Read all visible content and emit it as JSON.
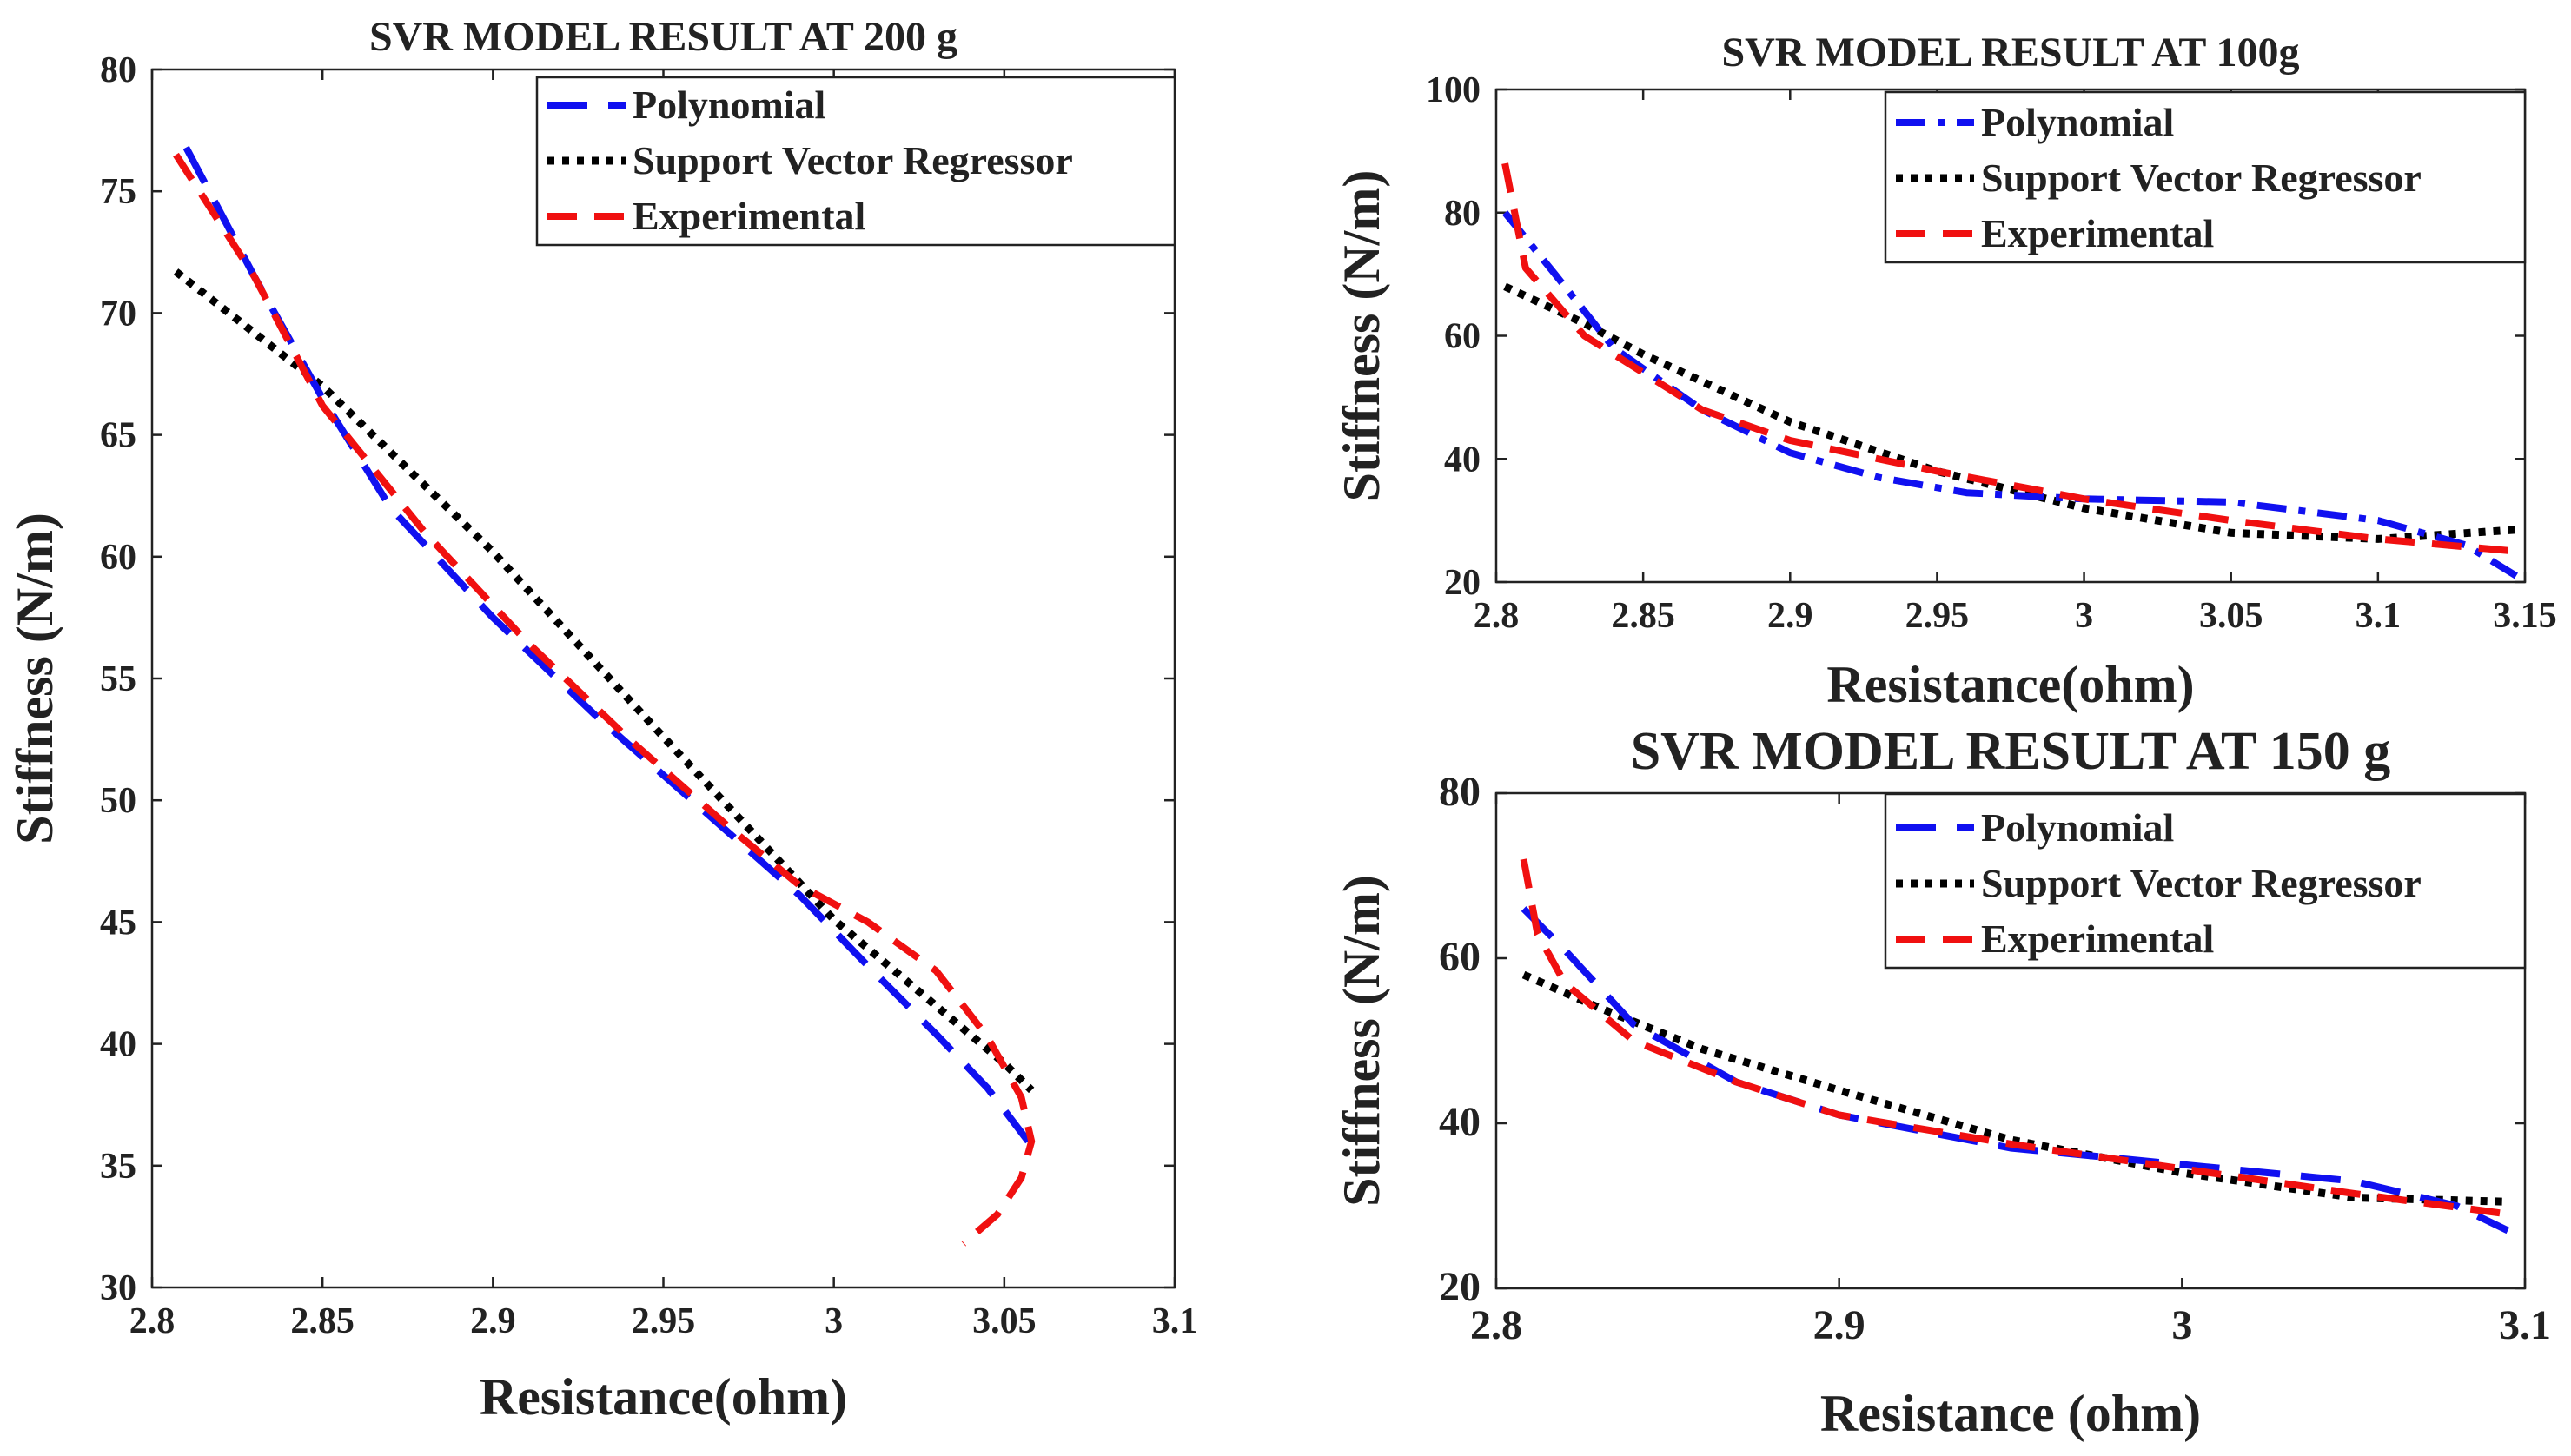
{
  "chart_data": [
    {
      "id": "c200",
      "type": "line",
      "title": "SVR MODEL RESULT AT 200 g",
      "xlabel": "Resistance(ohm)",
      "ylabel": "Stiffness (N/m)",
      "xlim": [
        2.8,
        3.1
      ],
      "ylim": [
        30,
        80
      ],
      "xticks": [
        "2.8",
        "2.85",
        "2.9",
        "2.95",
        "3",
        "3.05",
        "3.1"
      ],
      "yticks": [
        "30",
        "35",
        "40",
        "45",
        "50",
        "55",
        "60",
        "65",
        "70",
        "75",
        "80"
      ],
      "legend": {
        "position": "top-right",
        "entries": [
          "Polynomial",
          "Support Vector Regressor",
          "Experimental"
        ]
      },
      "series": [
        {
          "name": "Polynomial",
          "color": "#1010f0",
          "dash": "long-dash",
          "x": [
            2.81,
            2.83,
            2.85,
            2.87,
            2.9,
            2.93,
            2.96,
            2.99,
            3.01,
            3.03,
            3.045,
            3.057
          ],
          "y": [
            76.8,
            71.5,
            66.5,
            62,
            57.5,
            53.5,
            49.8,
            46.1,
            43.2,
            40.4,
            38.2,
            36
          ]
        },
        {
          "name": "Support Vector Regressor",
          "color": "#000000",
          "dash": "dot",
          "x": [
            2.807,
            2.85,
            2.9,
            2.95,
            3.0,
            3.05,
            3.058
          ],
          "y": [
            71.7,
            67,
            60.2,
            52.6,
            45.1,
            39.2,
            38.1
          ]
        },
        {
          "name": "Experimental",
          "color": "#f01010",
          "dash": "dash",
          "x": [
            2.807,
            2.83,
            2.85,
            2.88,
            2.91,
            2.94,
            2.97,
            2.99,
            3.01,
            3.03,
            3.045,
            3.055,
            3.058,
            3.055,
            3.048,
            3.038
          ],
          "y": [
            76.5,
            71.5,
            66.2,
            61,
            56.5,
            52.5,
            48.8,
            46.5,
            45,
            43,
            40.3,
            37.8,
            36,
            34.5,
            33,
            31.8
          ]
        }
      ]
    },
    {
      "id": "c100",
      "type": "line",
      "title": "SVR MODEL RESULT AT 100g",
      "xlabel": "Resistance(ohm)",
      "ylabel": "Stiffness (N/m)",
      "xlim": [
        2.8,
        3.15
      ],
      "ylim": [
        20,
        100
      ],
      "xticks": [
        "2.8",
        "2.85",
        "2.9",
        "2.95",
        "3",
        "3.05",
        "3.1",
        "3.15"
      ],
      "yticks": [
        "20",
        "40",
        "60",
        "80",
        "100"
      ],
      "legend": {
        "position": "top-right",
        "entries": [
          "Polynomial",
          "Support Vector Regressor",
          "Experimental"
        ]
      },
      "series": [
        {
          "name": "Polynomial",
          "color": "#1010f0",
          "dash": "dash-dot",
          "x": [
            2.803,
            2.82,
            2.84,
            2.87,
            2.9,
            2.93,
            2.96,
            3.0,
            3.05,
            3.1,
            3.13,
            3.147
          ],
          "y": [
            80,
            70,
            58,
            48,
            41,
            37,
            34.5,
            33.5,
            33,
            30,
            26,
            21
          ]
        },
        {
          "name": "Support Vector Regressor",
          "color": "#000000",
          "dash": "dot",
          "x": [
            2.803,
            2.83,
            2.85,
            2.9,
            2.95,
            3.0,
            3.05,
            3.1,
            3.147
          ],
          "y": [
            68,
            62,
            57,
            46,
            38,
            32,
            28,
            27,
            28.5
          ]
        },
        {
          "name": "Experimental",
          "color": "#f01010",
          "dash": "dash",
          "x": [
            2.803,
            2.81,
            2.83,
            2.87,
            2.9,
            2.95,
            3.0,
            3.05,
            3.1,
            3.147
          ],
          "y": [
            88,
            71,
            60,
            48,
            43,
            38,
            33.5,
            30,
            27,
            25
          ]
        }
      ]
    },
    {
      "id": "c150",
      "type": "line",
      "title": "SVR MODEL RESULT AT 150 g",
      "xlabel": "Resistance (ohm)",
      "ylabel": "Stiffness (N/m)",
      "xlim": [
        2.8,
        3.1
      ],
      "ylim": [
        20,
        80
      ],
      "xticks": [
        "2.8",
        "2.9",
        "3",
        "3.1"
      ],
      "yticks": [
        "20",
        "40",
        "60",
        "80"
      ],
      "legend": {
        "position": "top-right",
        "entries": [
          "Polynomial",
          "Support Vector Regressor",
          "Experimental"
        ]
      },
      "series": [
        {
          "name": "Polynomial",
          "color": "#1010f0",
          "dash": "long-dash",
          "x": [
            2.808,
            2.82,
            2.84,
            2.87,
            2.9,
            2.95,
            3.0,
            3.05,
            3.08,
            3.095
          ],
          "y": [
            66,
            61,
            52,
            45,
            41,
            37,
            35,
            33,
            30,
            27
          ]
        },
        {
          "name": "Support Vector Regressor",
          "color": "#000000",
          "dash": "dot",
          "x": [
            2.808,
            2.83,
            2.86,
            2.9,
            2.95,
            3.0,
            3.05,
            3.095
          ],
          "y": [
            58,
            54,
            49,
            44,
            38,
            34,
            31,
            30.5
          ]
        },
        {
          "name": "Experimental",
          "color": "#f01010",
          "dash": "dash",
          "x": [
            2.808,
            2.812,
            2.82,
            2.84,
            2.87,
            2.9,
            2.95,
            3.0,
            3.05,
            3.095
          ],
          "y": [
            72,
            63,
            57,
            50,
            45,
            41,
            37.5,
            34.5,
            31.5,
            29
          ]
        }
      ]
    }
  ]
}
